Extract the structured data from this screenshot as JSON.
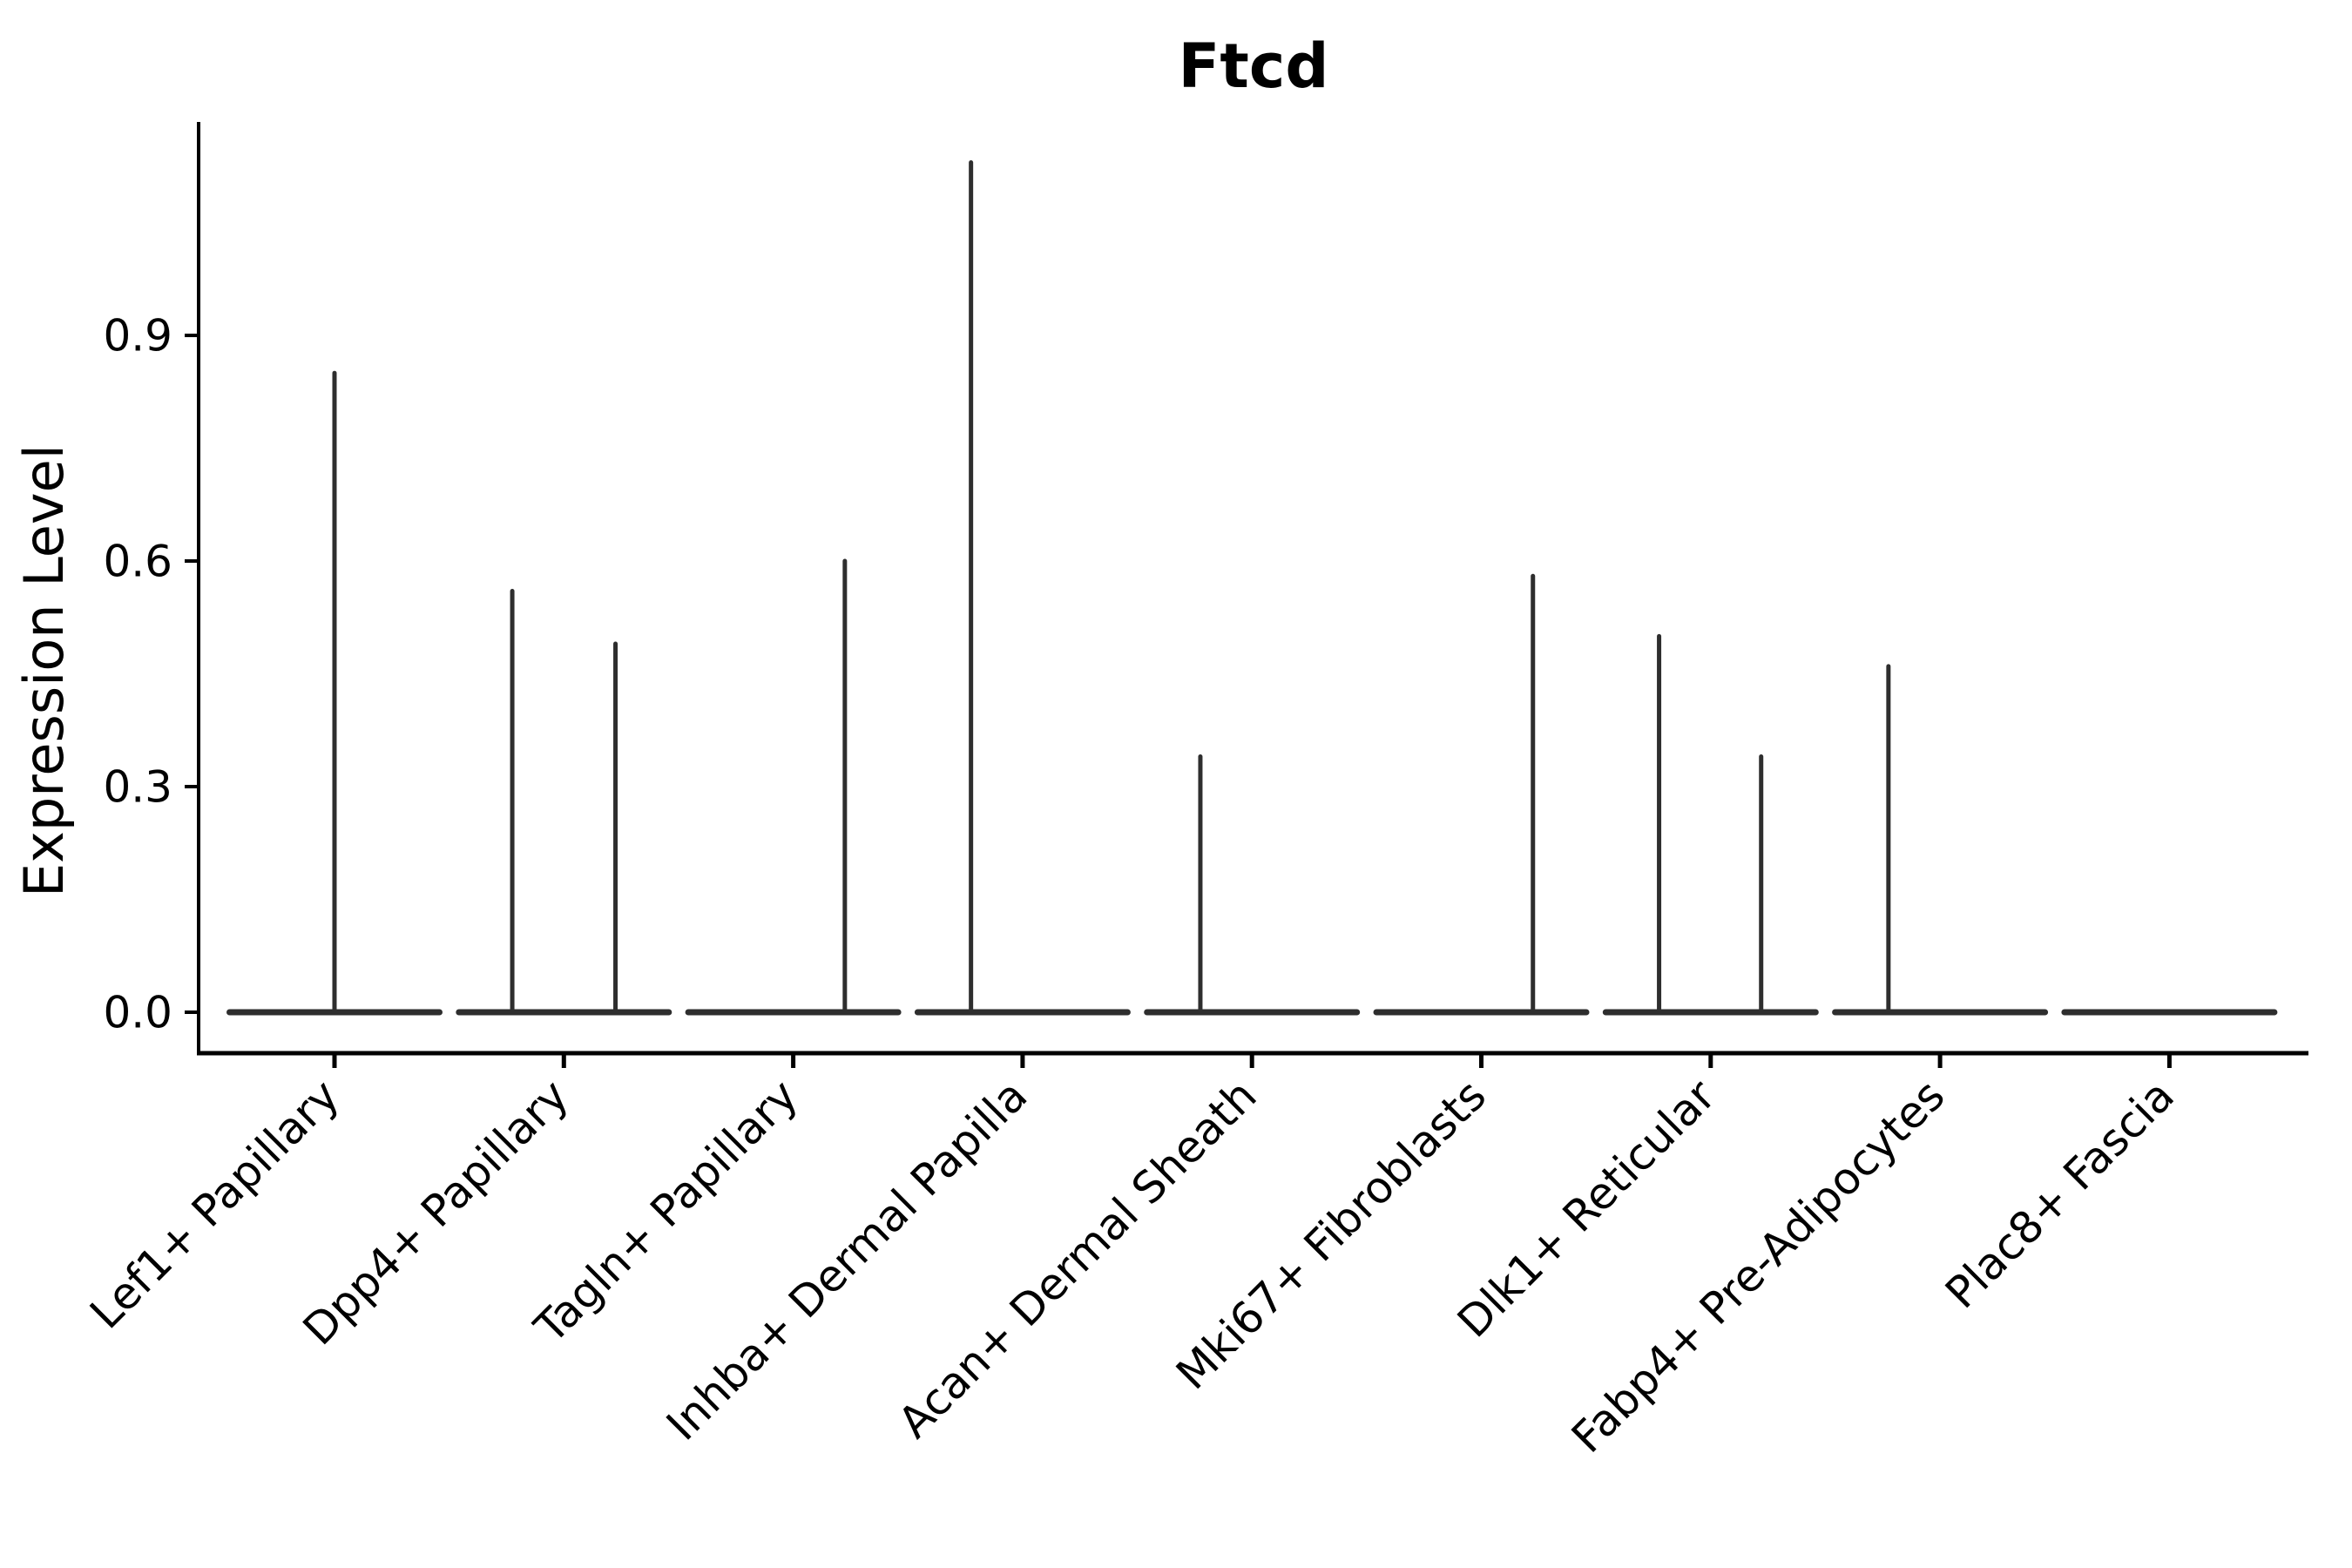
{
  "chart_data": {
    "type": "violin",
    "title": "Ftcd",
    "xlabel": "",
    "ylabel": "Expression Level",
    "ylim": [
      -0.05,
      1.18
    ],
    "yticks": [
      "0.0",
      "0.3",
      "0.6",
      "0.9"
    ],
    "ytick_values": [
      0.0,
      0.3,
      0.6,
      0.9
    ],
    "grid": false,
    "legend": "none",
    "axis_color": "#000000",
    "violin_color": "#2e2e2e",
    "background_color": "#ffffff",
    "offset_unit": "fraction of category slot width",
    "categories": [
      {
        "label": "Lef1+ Papillary",
        "spikes": [
          {
            "offset": 0.0,
            "value": 0.85
          }
        ]
      },
      {
        "label": "Dpp4+ Papillary",
        "spikes": [
          {
            "offset": -0.225,
            "value": 0.56
          },
          {
            "offset": 0.225,
            "value": 0.49
          }
        ]
      },
      {
        "label": "Tagln+ Papillary",
        "spikes": [
          {
            "offset": 0.225,
            "value": 0.6
          }
        ]
      },
      {
        "label": "Inhba+ Dermal Papilla",
        "spikes": [
          {
            "offset": -0.225,
            "value": 1.13
          }
        ]
      },
      {
        "label": "Acan+ Dermal Sheath",
        "spikes": [
          {
            "offset": -0.225,
            "value": 0.34
          }
        ]
      },
      {
        "label": "Mki67+ Fibroblasts",
        "spikes": [
          {
            "offset": 0.225,
            "value": 0.58
          }
        ]
      },
      {
        "label": "Dlk1+ Reticular",
        "spikes": [
          {
            "offset": -0.225,
            "value": 0.5
          },
          {
            "offset": 0.22,
            "value": 0.34
          }
        ]
      },
      {
        "label": "Fabp4+ Pre-Adipocytes",
        "spikes": [
          {
            "offset": -0.225,
            "value": 0.46
          }
        ]
      },
      {
        "label": "Plac8+ Fascia",
        "spikes": []
      }
    ]
  }
}
